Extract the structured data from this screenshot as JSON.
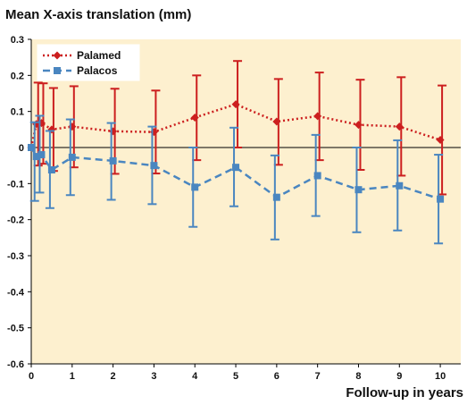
{
  "chart_data": {
    "type": "line",
    "title": "Mean X-axis translation (mm)",
    "xlabel": "Follow-up in years",
    "ylabel": "",
    "xlim": [
      0,
      10.5
    ],
    "ylim": [
      -0.6,
      0.3
    ],
    "xticks": [
      0,
      1,
      2,
      3,
      4,
      5,
      6,
      7,
      8,
      9,
      10
    ],
    "yticks": [
      0.3,
      0.2,
      0.1,
      0,
      -0.1,
      -0.2,
      -0.3,
      -0.4,
      -0.5,
      -0.6
    ],
    "ytick_labels": [
      "0.3",
      "0.2",
      "0.1",
      "0",
      "-0.1",
      "-0.2",
      "-0.3",
      "-0.4",
      "-0.5",
      "-0.6"
    ],
    "legend_position": "top-left",
    "series": [
      {
        "name": "Palamed",
        "color": "#cc1f1f",
        "marker": "diamond",
        "line_style": "dotted",
        "x": [
          0,
          0.125,
          0.25,
          0.5,
          1,
          2,
          3,
          4,
          5,
          6,
          7,
          8,
          9,
          10
        ],
        "values": [
          0.0,
          0.065,
          0.068,
          0.05,
          0.058,
          0.045,
          0.043,
          0.083,
          0.12,
          0.072,
          0.087,
          0.063,
          0.058,
          0.021
        ],
        "upper": [
          0.0,
          0.18,
          0.178,
          0.165,
          0.17,
          0.163,
          0.158,
          0.2,
          0.24,
          0.19,
          0.208,
          0.188,
          0.195,
          0.172
        ],
        "lower": [
          0.0,
          -0.05,
          -0.045,
          -0.065,
          -0.055,
          -0.073,
          -0.072,
          -0.035,
          0.0,
          -0.048,
          -0.035,
          -0.062,
          -0.078,
          -0.13
        ]
      },
      {
        "name": "Palacos",
        "color": "#4a86c0",
        "marker": "square",
        "line_style": "dashed",
        "x": [
          0,
          0.125,
          0.25,
          0.5,
          1,
          2,
          3,
          4,
          5,
          6,
          7,
          8,
          9,
          10
        ],
        "values": [
          0.0,
          -0.025,
          -0.02,
          -0.062,
          -0.027,
          -0.037,
          -0.05,
          -0.11,
          -0.055,
          -0.138,
          -0.078,
          -0.117,
          -0.106,
          -0.143
        ],
        "upper": [
          0.0,
          0.07,
          0.088,
          0.046,
          0.078,
          0.068,
          0.058,
          0.0,
          0.055,
          -0.022,
          0.035,
          0.0,
          0.02,
          -0.02
        ],
        "lower": [
          0.0,
          -0.148,
          -0.125,
          -0.168,
          -0.132,
          -0.145,
          -0.157,
          -0.22,
          -0.163,
          -0.255,
          -0.19,
          -0.235,
          -0.23,
          -0.266
        ]
      }
    ],
    "colors": {
      "plot_background": "#fdf0cf",
      "axis": "#000000",
      "zero_line": "#000000"
    }
  }
}
